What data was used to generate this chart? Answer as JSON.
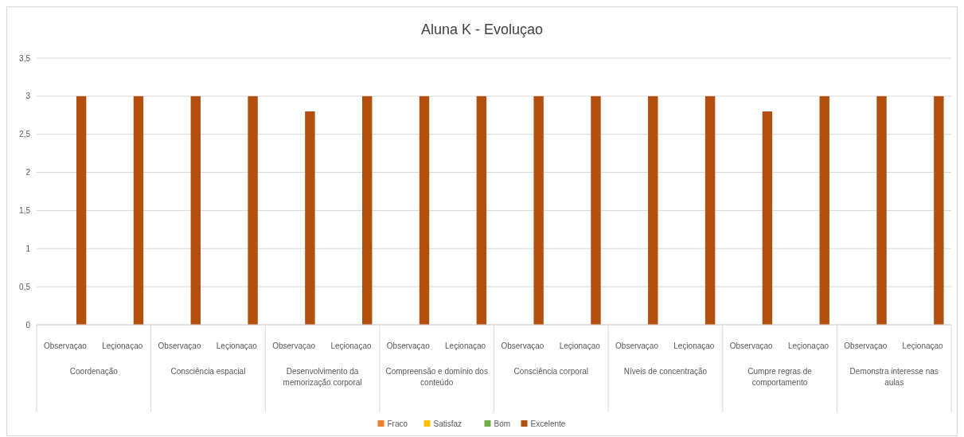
{
  "chart_data": {
    "type": "bar",
    "title": "Aluna K - Evoluçao",
    "categories": [
      "Observaçao",
      "Leçionaçao",
      "Observaçao",
      "Leçionaçao",
      "Observaçao",
      "Leçionaçao",
      "Observaçao",
      "Leçionaçao",
      "Observaçao",
      "Leçionaçao",
      "Observaçao",
      "Leçionaçao",
      "Observaçao",
      "Leçionaçao",
      "Observaçao",
      "Leçionaçao"
    ],
    "series": [
      {
        "name": "Fraco",
        "color": "#ed7d31",
        "values": [
          null,
          null,
          null,
          null,
          null,
          null,
          null,
          null,
          null,
          null,
          null,
          null,
          null,
          null,
          null,
          null
        ]
      },
      {
        "name": "Satisfaz",
        "color": "#ffc000",
        "values": [
          null,
          null,
          null,
          null,
          null,
          null,
          null,
          null,
          null,
          null,
          null,
          null,
          null,
          null,
          null,
          null
        ]
      },
      {
        "name": "Bom",
        "color": "#70ad47",
        "values": [
          null,
          null,
          null,
          null,
          null,
          null,
          null,
          null,
          null,
          null,
          null,
          null,
          null,
          null,
          null,
          null
        ]
      },
      {
        "name": "Excelente",
        "color": "#b4500f",
        "values": [
          3,
          3,
          3,
          3,
          2.8,
          3,
          3,
          3,
          3,
          3,
          3,
          3,
          2.8,
          3,
          3,
          3
        ]
      }
    ],
    "ylim": [
      0,
      3.5
    ],
    "yticks": [
      0,
      {
        "value": 0.5,
        "label": "0,5"
      },
      1,
      {
        "value": 1.5,
        "label": "1,5"
      },
      2,
      {
        "value": 2.5,
        "label": "2,5"
      },
      3,
      {
        "value": 3.5,
        "label": "3,5"
      }
    ],
    "grid": "y",
    "legend": "bottom",
    "annotations": [
      "Coordenação",
      "Consciência espacial",
      "Desenvolvimento da memorização corporal",
      "Compreensão e domínio dos conteúdo",
      "Consciência corporal",
      "Níveis de concentração",
      "Cumpre regras de comportamento",
      "Demonstra interesse nas aulas"
    ]
  }
}
